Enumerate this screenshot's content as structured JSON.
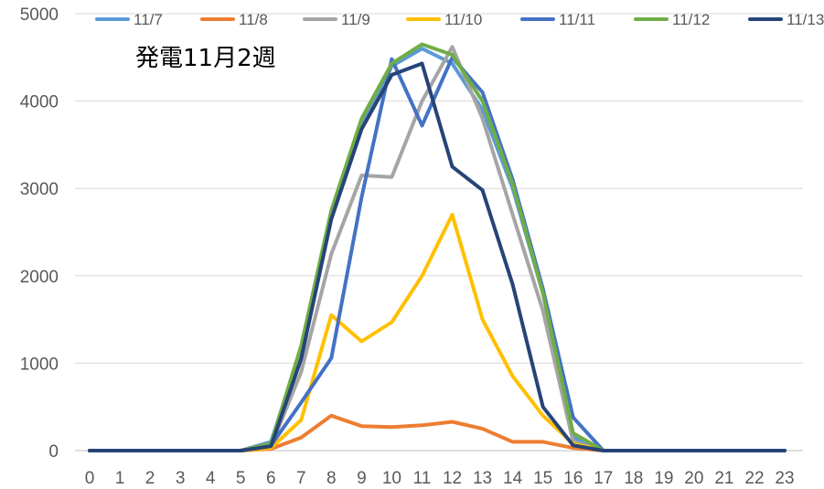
{
  "chart_data": {
    "type": "line",
    "title": "発電11月2週",
    "xlabel": "",
    "ylabel": "",
    "x": [
      0,
      1,
      2,
      3,
      4,
      5,
      6,
      7,
      8,
      9,
      10,
      11,
      12,
      13,
      14,
      15,
      16,
      17,
      18,
      19,
      20,
      21,
      22,
      23
    ],
    "x_tick_labels": [
      "0",
      "1",
      "2",
      "3",
      "4",
      "5",
      "6",
      "7",
      "8",
      "9",
      "10",
      "11",
      "12",
      "13",
      "14",
      "15",
      "16",
      "17",
      "18",
      "19",
      "20",
      "21",
      "22",
      "23"
    ],
    "ylim": [
      0,
      5000
    ],
    "y_ticks": [
      0,
      1000,
      2000,
      3000,
      4000,
      5000
    ],
    "y_tick_labels": [
      "0",
      "1000",
      "2000",
      "3000",
      "4000",
      "5000"
    ],
    "grid": true,
    "legend_position": "top",
    "series": [
      {
        "name": "11/7",
        "color": "#5B9BD5",
        "values": [
          0,
          0,
          0,
          0,
          0,
          0,
          100,
          1150,
          2700,
          3750,
          4400,
          4600,
          4430,
          3900,
          3000,
          1800,
          150,
          0,
          0,
          0,
          0,
          0,
          0,
          0
        ]
      },
      {
        "name": "11/8",
        "color": "#ED7D31",
        "values": [
          0,
          0,
          0,
          0,
          0,
          0,
          20,
          150,
          400,
          280,
          270,
          290,
          330,
          250,
          100,
          100,
          30,
          0,
          0,
          0,
          0,
          0,
          0,
          0
        ]
      },
      {
        "name": "11/9",
        "color": "#A5A5A5",
        "values": [
          0,
          0,
          0,
          0,
          0,
          0,
          50,
          900,
          2250,
          3150,
          3130,
          4000,
          4620,
          3800,
          2700,
          1600,
          100,
          0,
          0,
          0,
          0,
          0,
          0,
          0
        ]
      },
      {
        "name": "11/10",
        "color": "#FFC000",
        "values": [
          0,
          0,
          0,
          0,
          0,
          0,
          30,
          350,
          1550,
          1250,
          1470,
          2000,
          2700,
          1500,
          850,
          400,
          80,
          0,
          0,
          0,
          0,
          0,
          0,
          0
        ]
      },
      {
        "name": "11/11",
        "color": "#4472C4",
        "values": [
          0,
          0,
          0,
          0,
          0,
          0,
          60,
          550,
          1060,
          2900,
          4480,
          3720,
          4500,
          4100,
          3100,
          1850,
          380,
          0,
          0,
          0,
          0,
          0,
          0,
          0
        ]
      },
      {
        "name": "11/12",
        "color": "#70AD47",
        "values": [
          0,
          0,
          0,
          0,
          0,
          0,
          80,
          1200,
          2750,
          3800,
          4430,
          4650,
          4530,
          4000,
          3050,
          1800,
          200,
          0,
          0,
          0,
          0,
          0,
          0,
          0
        ]
      },
      {
        "name": "11/13",
        "color": "#264478",
        "values": [
          0,
          0,
          0,
          0,
          0,
          0,
          50,
          1050,
          2650,
          3680,
          4300,
          4430,
          3250,
          2980,
          1900,
          500,
          60,
          0,
          0,
          0,
          0,
          0,
          0,
          0
        ]
      }
    ]
  }
}
